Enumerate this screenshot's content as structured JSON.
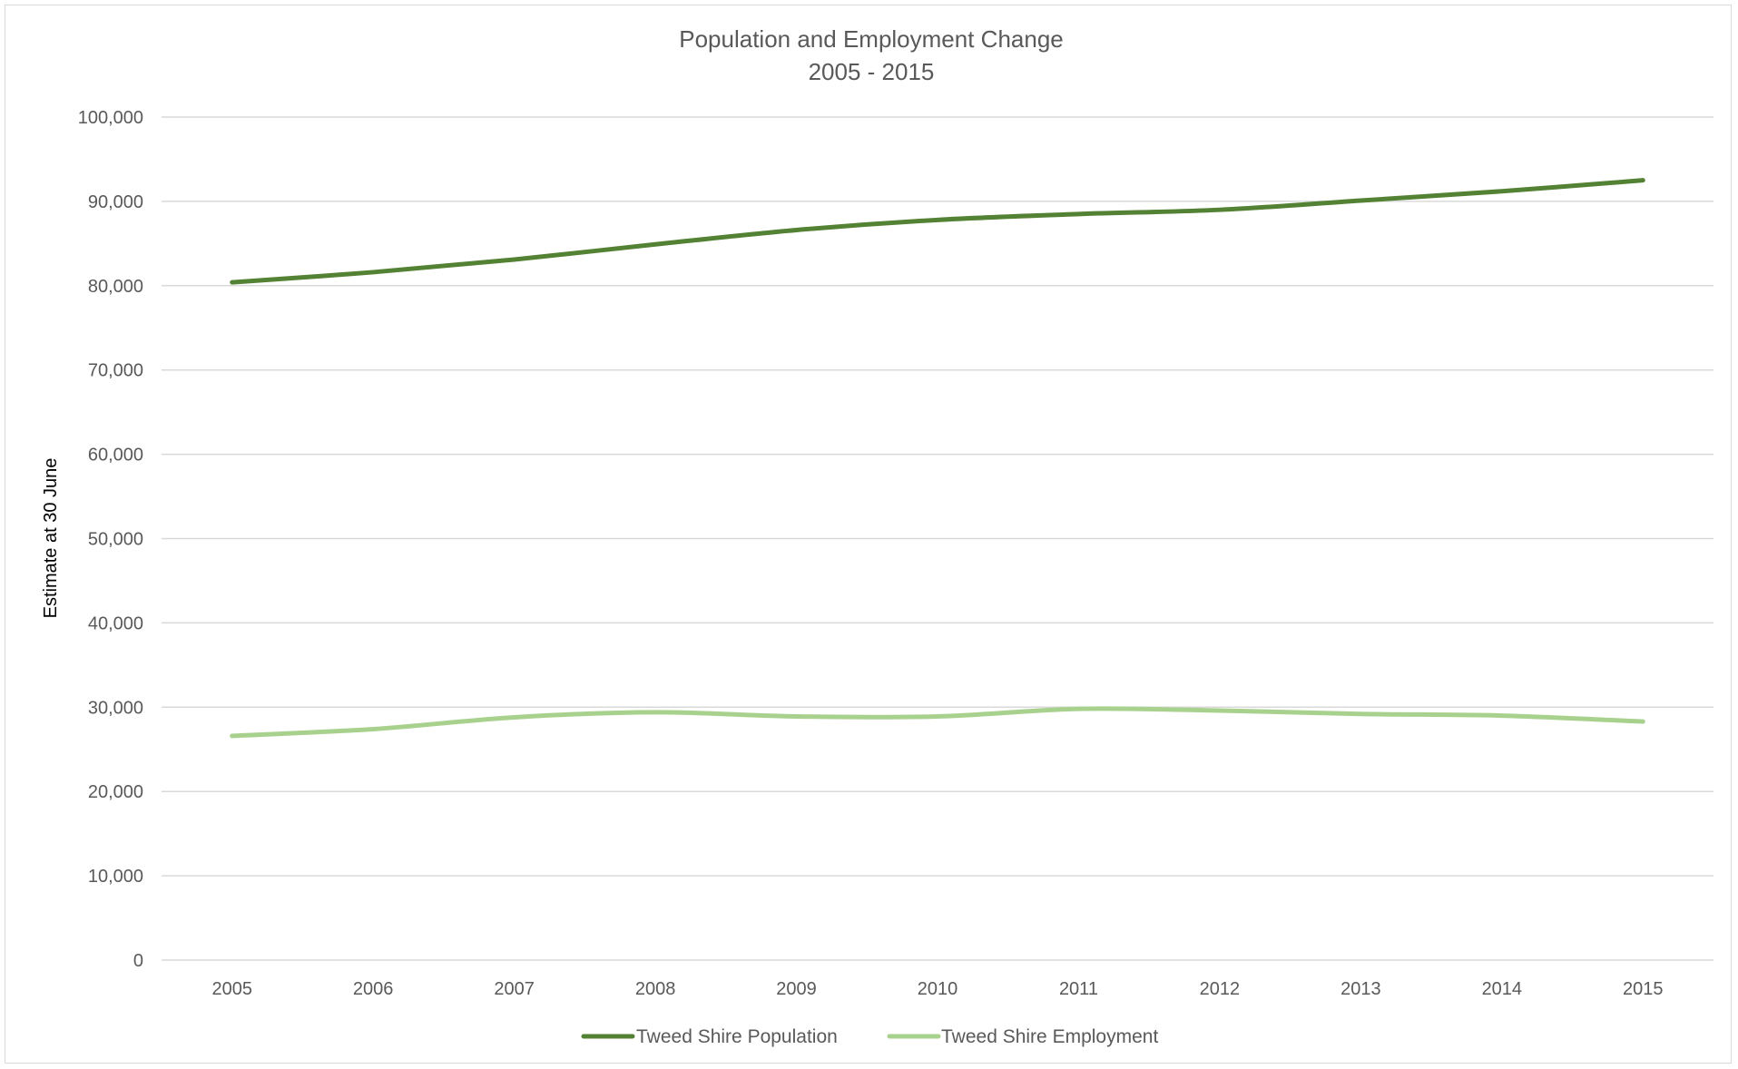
{
  "chart_data": {
    "type": "line",
    "title": "Population and Employment Change",
    "subtitle": "2005 - 2015",
    "ylabel": "Estimate at 30 June",
    "xlabel": "",
    "categories": [
      "2005",
      "2006",
      "2007",
      "2008",
      "2009",
      "2010",
      "2011",
      "2012",
      "2013",
      "2014",
      "2015"
    ],
    "ylim": [
      0,
      100000
    ],
    "yticks": [
      0,
      10000,
      20000,
      30000,
      40000,
      50000,
      60000,
      70000,
      80000,
      90000,
      100000
    ],
    "ytick_labels": [
      "0",
      "10,000",
      "20,000",
      "30,000",
      "40,000",
      "50,000",
      "60,000",
      "70,000",
      "80,000",
      "90,000",
      "100,000"
    ],
    "grid": "horizontal",
    "legend_position": "bottom",
    "series": [
      {
        "name": "Tweed Shire Population",
        "color": "#548235",
        "values": [
          80400,
          81600,
          83100,
          84900,
          86600,
          87800,
          88500,
          89000,
          90100,
          91200,
          92500
        ]
      },
      {
        "name": "Tweed Shire Employment",
        "color": "#a9d18e",
        "values": [
          26600,
          27400,
          28800,
          29400,
          28900,
          28900,
          29800,
          29600,
          29200,
          29000,
          28300
        ]
      }
    ]
  }
}
